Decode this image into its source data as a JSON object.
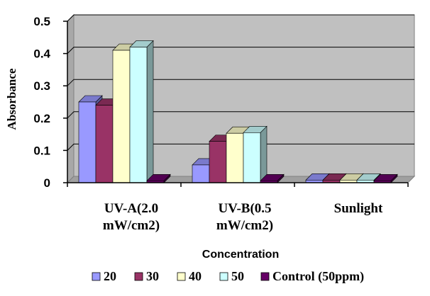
{
  "chart_data": {
    "type": "bar",
    "title": "",
    "xlabel": "Concentration",
    "ylabel": "Absorbance",
    "ylim": [
      0,
      0.5
    ],
    "y_ticks": [
      "0",
      "0.1",
      "0.2",
      "0.3",
      "0.4",
      "0.5"
    ],
    "y_tick_values": [
      0,
      0.1,
      0.2,
      0.3,
      0.4,
      0.5
    ],
    "categories": [
      [
        "UV-A(2.0",
        "mW/cm2)"
      ],
      [
        "UV-B(0.5",
        "mW/cm2)"
      ],
      [
        "Sunlight"
      ]
    ],
    "series": [
      {
        "name": "20",
        "values": [
          0.25,
          0.055,
          0.008
        ],
        "color": "#9999FF"
      },
      {
        "name": "30",
        "values": [
          0.24,
          0.128,
          0.008
        ],
        "color": "#993366"
      },
      {
        "name": "40",
        "values": [
          0.41,
          0.153,
          0.008
        ],
        "color": "#FFFFCC"
      },
      {
        "name": "50",
        "values": [
          0.42,
          0.155,
          0.008
        ],
        "color": "#CCFFFF"
      },
      {
        "name": "Control (50ppm)",
        "values": [
          0.006,
          0.006,
          0.006
        ],
        "color": "#660066"
      }
    ],
    "grid": true,
    "legend_position": "bottom",
    "plot_background": "#C0C0C0"
  }
}
